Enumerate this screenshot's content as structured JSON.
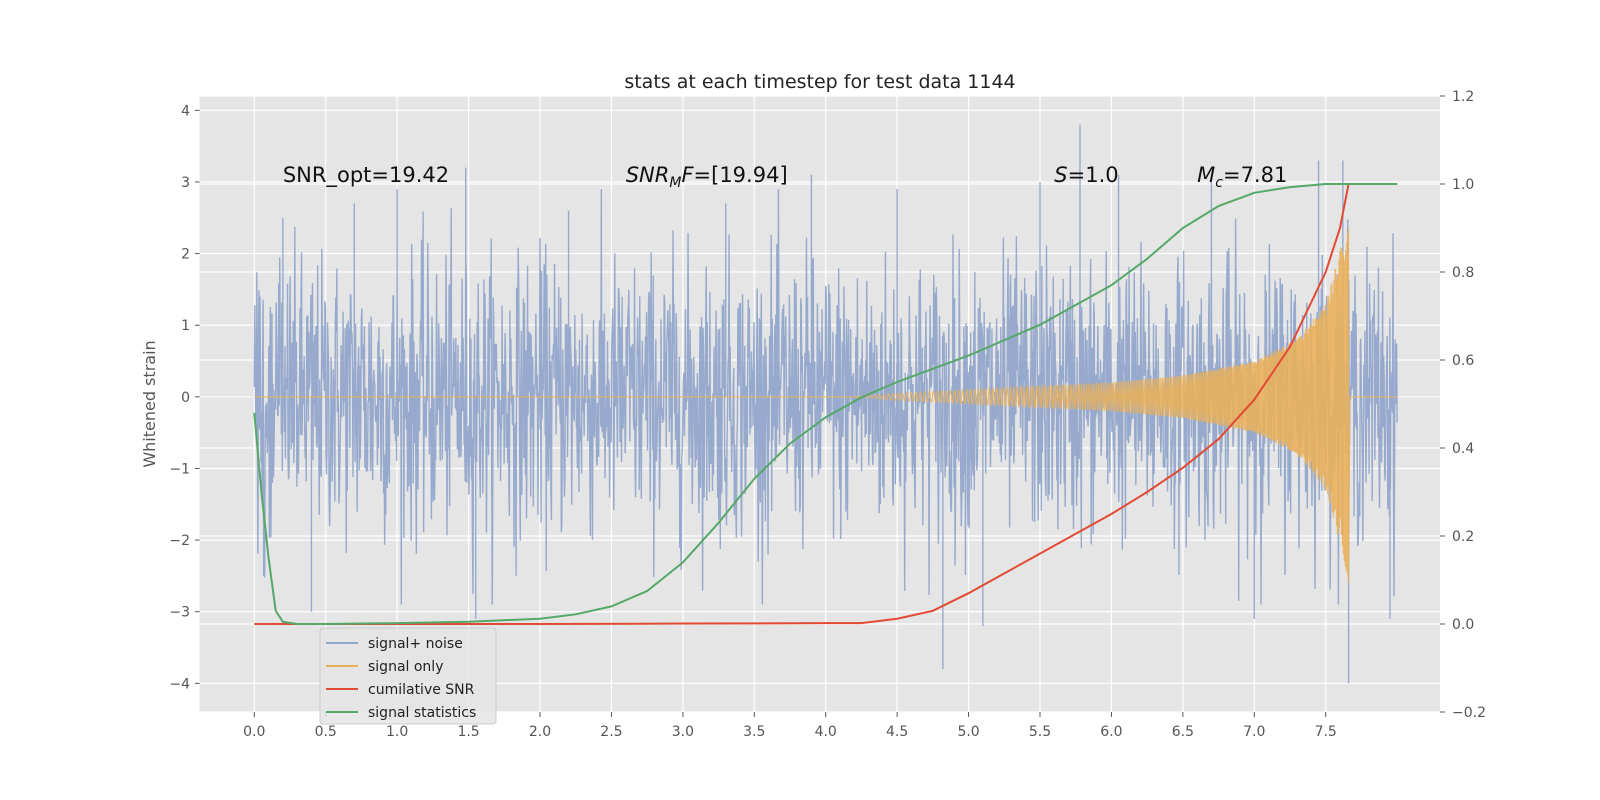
{
  "chart_data": {
    "type": "line",
    "title": "stats at each timestep for test data 1144",
    "xlabel": "",
    "ylabel": "Whitened strain",
    "xlim": [
      -0.38,
      8.3
    ],
    "ylim": [
      -4.4,
      4.2
    ],
    "y2lim": [
      -0.2,
      1.2
    ],
    "xticks": [
      "0.0",
      "0.5",
      "1.0",
      "1.5",
      "2.0",
      "2.5",
      "3.0",
      "3.5",
      "4.0",
      "4.5",
      "5.0",
      "5.5",
      "6.0",
      "6.5",
      "7.0",
      "7.5"
    ],
    "yticks": [
      "−4",
      "−3",
      "−2",
      "−1",
      "0",
      "1",
      "2",
      "3",
      "4"
    ],
    "y2ticks": [
      "−0.2",
      "0.0",
      "0.2",
      "0.4",
      "0.6",
      "0.8",
      "1.0",
      "1.2"
    ],
    "grid": true,
    "legend_position": "lower-left",
    "annotations": [
      {
        "x": 0.2,
        "y": 3.0,
        "text": "SNR_opt=19.42",
        "math": false
      },
      {
        "x": 2.6,
        "y": 3.0,
        "main": "SNR",
        "sub": "M",
        "tail": "F=[19.94]",
        "math": true
      },
      {
        "x": 5.6,
        "y": 3.0,
        "main": "S",
        "sub": "",
        "tail": "=1.0",
        "math": true
      },
      {
        "x": 6.6,
        "y": 3.0,
        "main": "M",
        "sub": "c",
        "tail": "=7.81",
        "math": true
      }
    ],
    "series": [
      {
        "name": "signal+ noise",
        "axis": "left",
        "color": "#92a6cb",
        "kind": "noise",
        "x_range": [
          0.0,
          8.0
        ],
        "std": 0.95,
        "peak_x": [
          0.2,
          0.4,
          0.7,
          1.0,
          1.48,
          1.55,
          2.2,
          3.3,
          3.9,
          4.5,
          4.82,
          5.1,
          5.5,
          5.78,
          6.05,
          6.7,
          7.0,
          7.45,
          7.62,
          7.66,
          7.95
        ],
        "peak_y": [
          2.5,
          -3.0,
          2.7,
          2.9,
          3.2,
          -3.1,
          2.6,
          2.7,
          3.1,
          2.9,
          -3.8,
          -3.2,
          3.0,
          3.8,
          3.1,
          3.0,
          -3.1,
          3.3,
          3.3,
          -4.0,
          -3.1
        ]
      },
      {
        "name": "signal only",
        "axis": "left",
        "color": "#e9b05c",
        "kind": "chirp",
        "start": 4.2,
        "merger": 7.66,
        "end": 8.0,
        "amplitude": [
          [
            4.2,
            0.0
          ],
          [
            4.5,
            0.05
          ],
          [
            5.0,
            0.1
          ],
          [
            5.5,
            0.15
          ],
          [
            6.0,
            0.2
          ],
          [
            6.5,
            0.3
          ],
          [
            7.0,
            0.5
          ],
          [
            7.3,
            0.8
          ],
          [
            7.5,
            1.3
          ],
          [
            7.62,
            2.2
          ],
          [
            7.66,
            2.6
          ]
        ]
      },
      {
        "name": "cumilative SNR",
        "axis": "right",
        "color": "#e24a33",
        "x": [
          0.0,
          1.0,
          2.0,
          3.0,
          4.0,
          4.25,
          4.5,
          4.75,
          5.0,
          5.25,
          5.5,
          5.75,
          6.0,
          6.25,
          6.5,
          6.75,
          7.0,
          7.25,
          7.5,
          7.6,
          7.66,
          7.7,
          8.0
        ],
        "y": [
          0.0,
          0.0,
          0.0,
          0.001,
          0.002,
          0.002,
          0.012,
          0.03,
          0.07,
          0.115,
          0.16,
          0.205,
          0.25,
          0.3,
          0.355,
          0.42,
          0.51,
          0.63,
          0.8,
          0.9,
          1.0,
          1.0,
          1.0
        ]
      },
      {
        "name": "signal statistics",
        "axis": "right",
        "color": "#55a868",
        "x": [
          0.0,
          0.05,
          0.1,
          0.15,
          0.2,
          0.3,
          0.5,
          1.0,
          1.5,
          2.0,
          2.25,
          2.5,
          2.75,
          3.0,
          3.25,
          3.5,
          3.75,
          4.0,
          4.25,
          4.5,
          5.0,
          5.5,
          6.0,
          6.25,
          6.5,
          6.75,
          7.0,
          7.25,
          7.5,
          7.75,
          8.0
        ],
        "y": [
          0.48,
          0.3,
          0.15,
          0.03,
          0.005,
          0.0,
          0.0,
          0.002,
          0.005,
          0.012,
          0.022,
          0.04,
          0.075,
          0.14,
          0.23,
          0.33,
          0.41,
          0.47,
          0.515,
          0.55,
          0.61,
          0.68,
          0.77,
          0.83,
          0.9,
          0.95,
          0.98,
          0.993,
          1.0,
          1.0,
          1.0
        ]
      }
    ]
  }
}
